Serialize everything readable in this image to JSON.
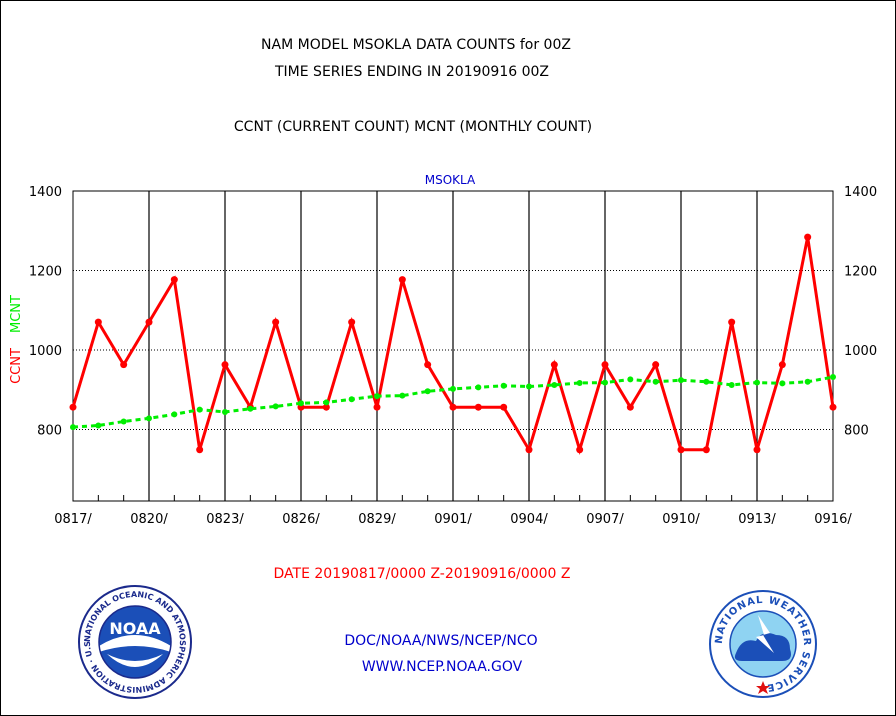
{
  "header": {
    "title_line1": "NAM MODEL MSOKLA DATA COUNTS for 00Z",
    "title_line2": "TIME SERIES ENDING IN 20190916 00Z",
    "subtitle": "CCNT (CURRENT COUNT) MCNT (MONTHLY COUNT)"
  },
  "footer": {
    "date_range": "DATE 20190817/0000 Z-20190916/0000 Z",
    "org": "DOC/NOAA/NWS/NCEP/NCO",
    "url": "WWW.NCEP.NOAA.GOV",
    "noaa_logo_text": "NOAA",
    "noaa_seal_text": "NATIONAL OCEANIC AND ATMOSPHERIC ADMINISTRATION · U.S. DEPARTMENT OF COMMERCE ·",
    "nws_seal_text": "NATIONAL WEATHER SERVICE"
  },
  "colors": {
    "ccnt": "#ff0000",
    "mcnt": "#00ee00",
    "station": "#0000cc",
    "footer_blue": "#0000cc",
    "date_red": "#ff0000"
  },
  "chart_data": {
    "type": "line",
    "title": "MSOKLA",
    "ylabel_series": [
      "CCNT",
      "MCNT"
    ],
    "ylim": [
      620,
      1400
    ],
    "yticks": [
      800,
      1000,
      1200,
      1400
    ],
    "x": [
      "0817",
      "0818",
      "0819",
      "0820",
      "0821",
      "0822",
      "0823",
      "0824",
      "0825",
      "0826",
      "0827",
      "0828",
      "0829",
      "0830",
      "0831",
      "0901",
      "0902",
      "0903",
      "0904",
      "0905",
      "0906",
      "0907",
      "0908",
      "0909",
      "0910",
      "0911",
      "0912",
      "0913",
      "0914",
      "0915",
      "0916"
    ],
    "xtick_labels": [
      "0817/",
      "0820/",
      "0823/",
      "0826/",
      "0829/",
      "0901/",
      "0904/",
      "0907/",
      "0910/",
      "0913/",
      "0916/"
    ],
    "xtick_indices": [
      0,
      3,
      6,
      9,
      12,
      15,
      18,
      21,
      24,
      27,
      30
    ],
    "grid": true,
    "series": [
      {
        "name": "CCNT",
        "values": [
          856,
          1070,
          963,
          1070,
          1177,
          749,
          963,
          856,
          1070,
          856,
          856,
          1070,
          856,
          1177,
          963,
          856,
          856,
          856,
          749,
          963,
          749,
          963,
          856,
          963,
          749,
          749,
          1070,
          749,
          963,
          1284,
          856
        ]
      },
      {
        "name": "MCNT",
        "values": [
          806,
          810,
          820,
          828,
          838,
          850,
          844,
          852,
          858,
          866,
          868,
          876,
          884,
          885,
          896,
          902,
          906,
          910,
          908,
          912,
          917,
          918,
          926,
          920,
          924,
          920,
          912,
          918,
          916,
          920,
          932
        ]
      }
    ]
  }
}
